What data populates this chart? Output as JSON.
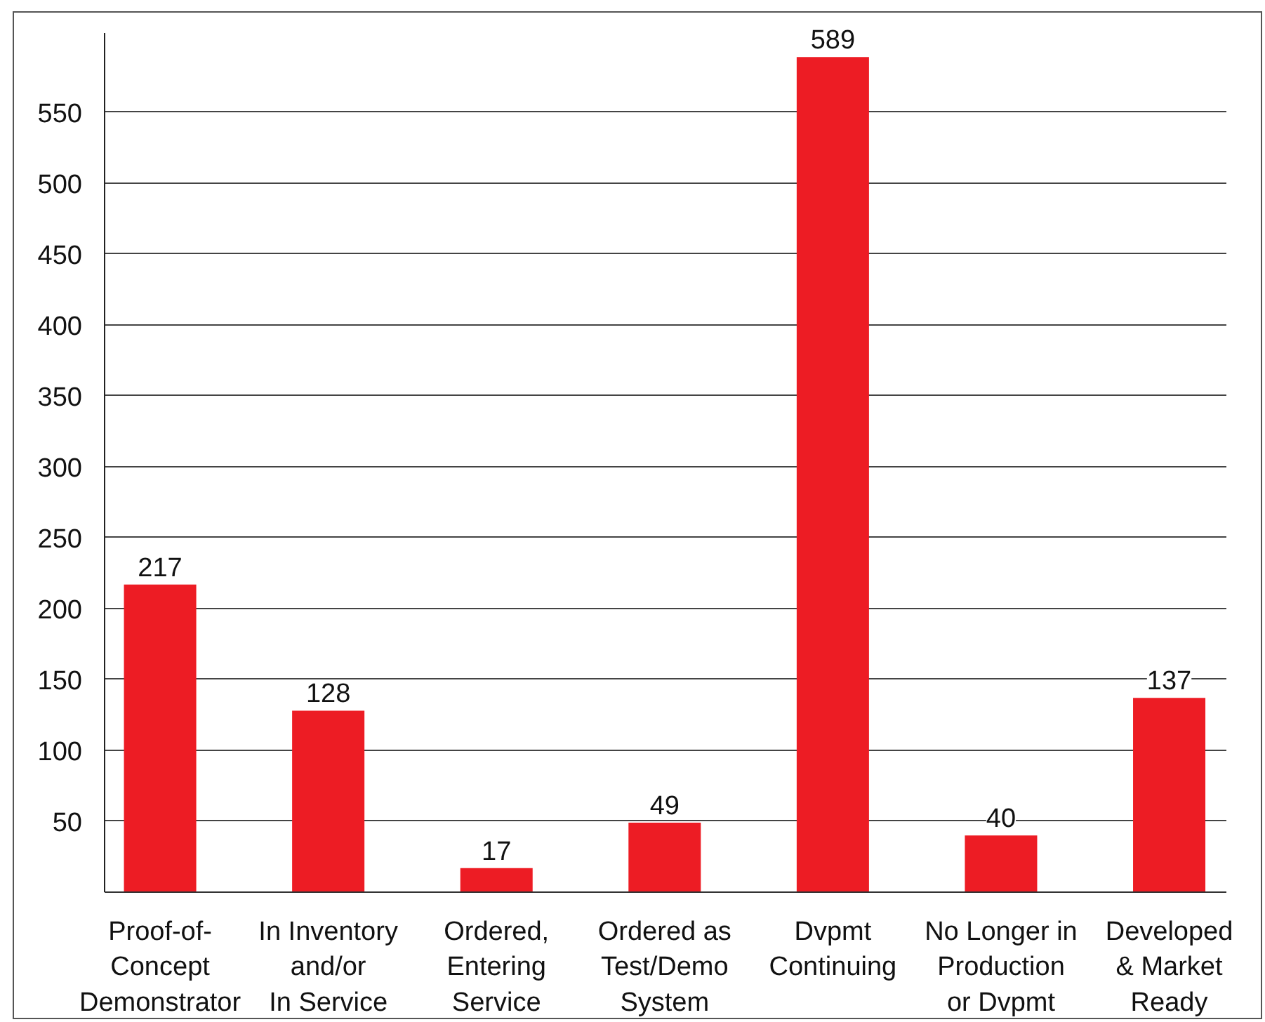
{
  "chart_data": {
    "type": "bar",
    "categories": [
      "Proof-of-\nConcept\nDemonstrator",
      "In Inventory\nand/or\nIn Service",
      "Ordered,\nEntering\nService",
      "Ordered as\nTest/Demo\nSystem",
      "Dvpmt\nContinuing",
      "No Longer in\nProduction\nor Dvpmt",
      "Developed\n& Market\nReady"
    ],
    "values": [
      217,
      128,
      17,
      49,
      589,
      40,
      137
    ],
    "color": "#ed1c24",
    "ylim": [
      0,
      606
    ],
    "yticks": [
      50,
      100,
      150,
      200,
      250,
      300,
      350,
      400,
      450,
      500,
      550
    ],
    "grid": "y",
    "data_labels": true
  }
}
